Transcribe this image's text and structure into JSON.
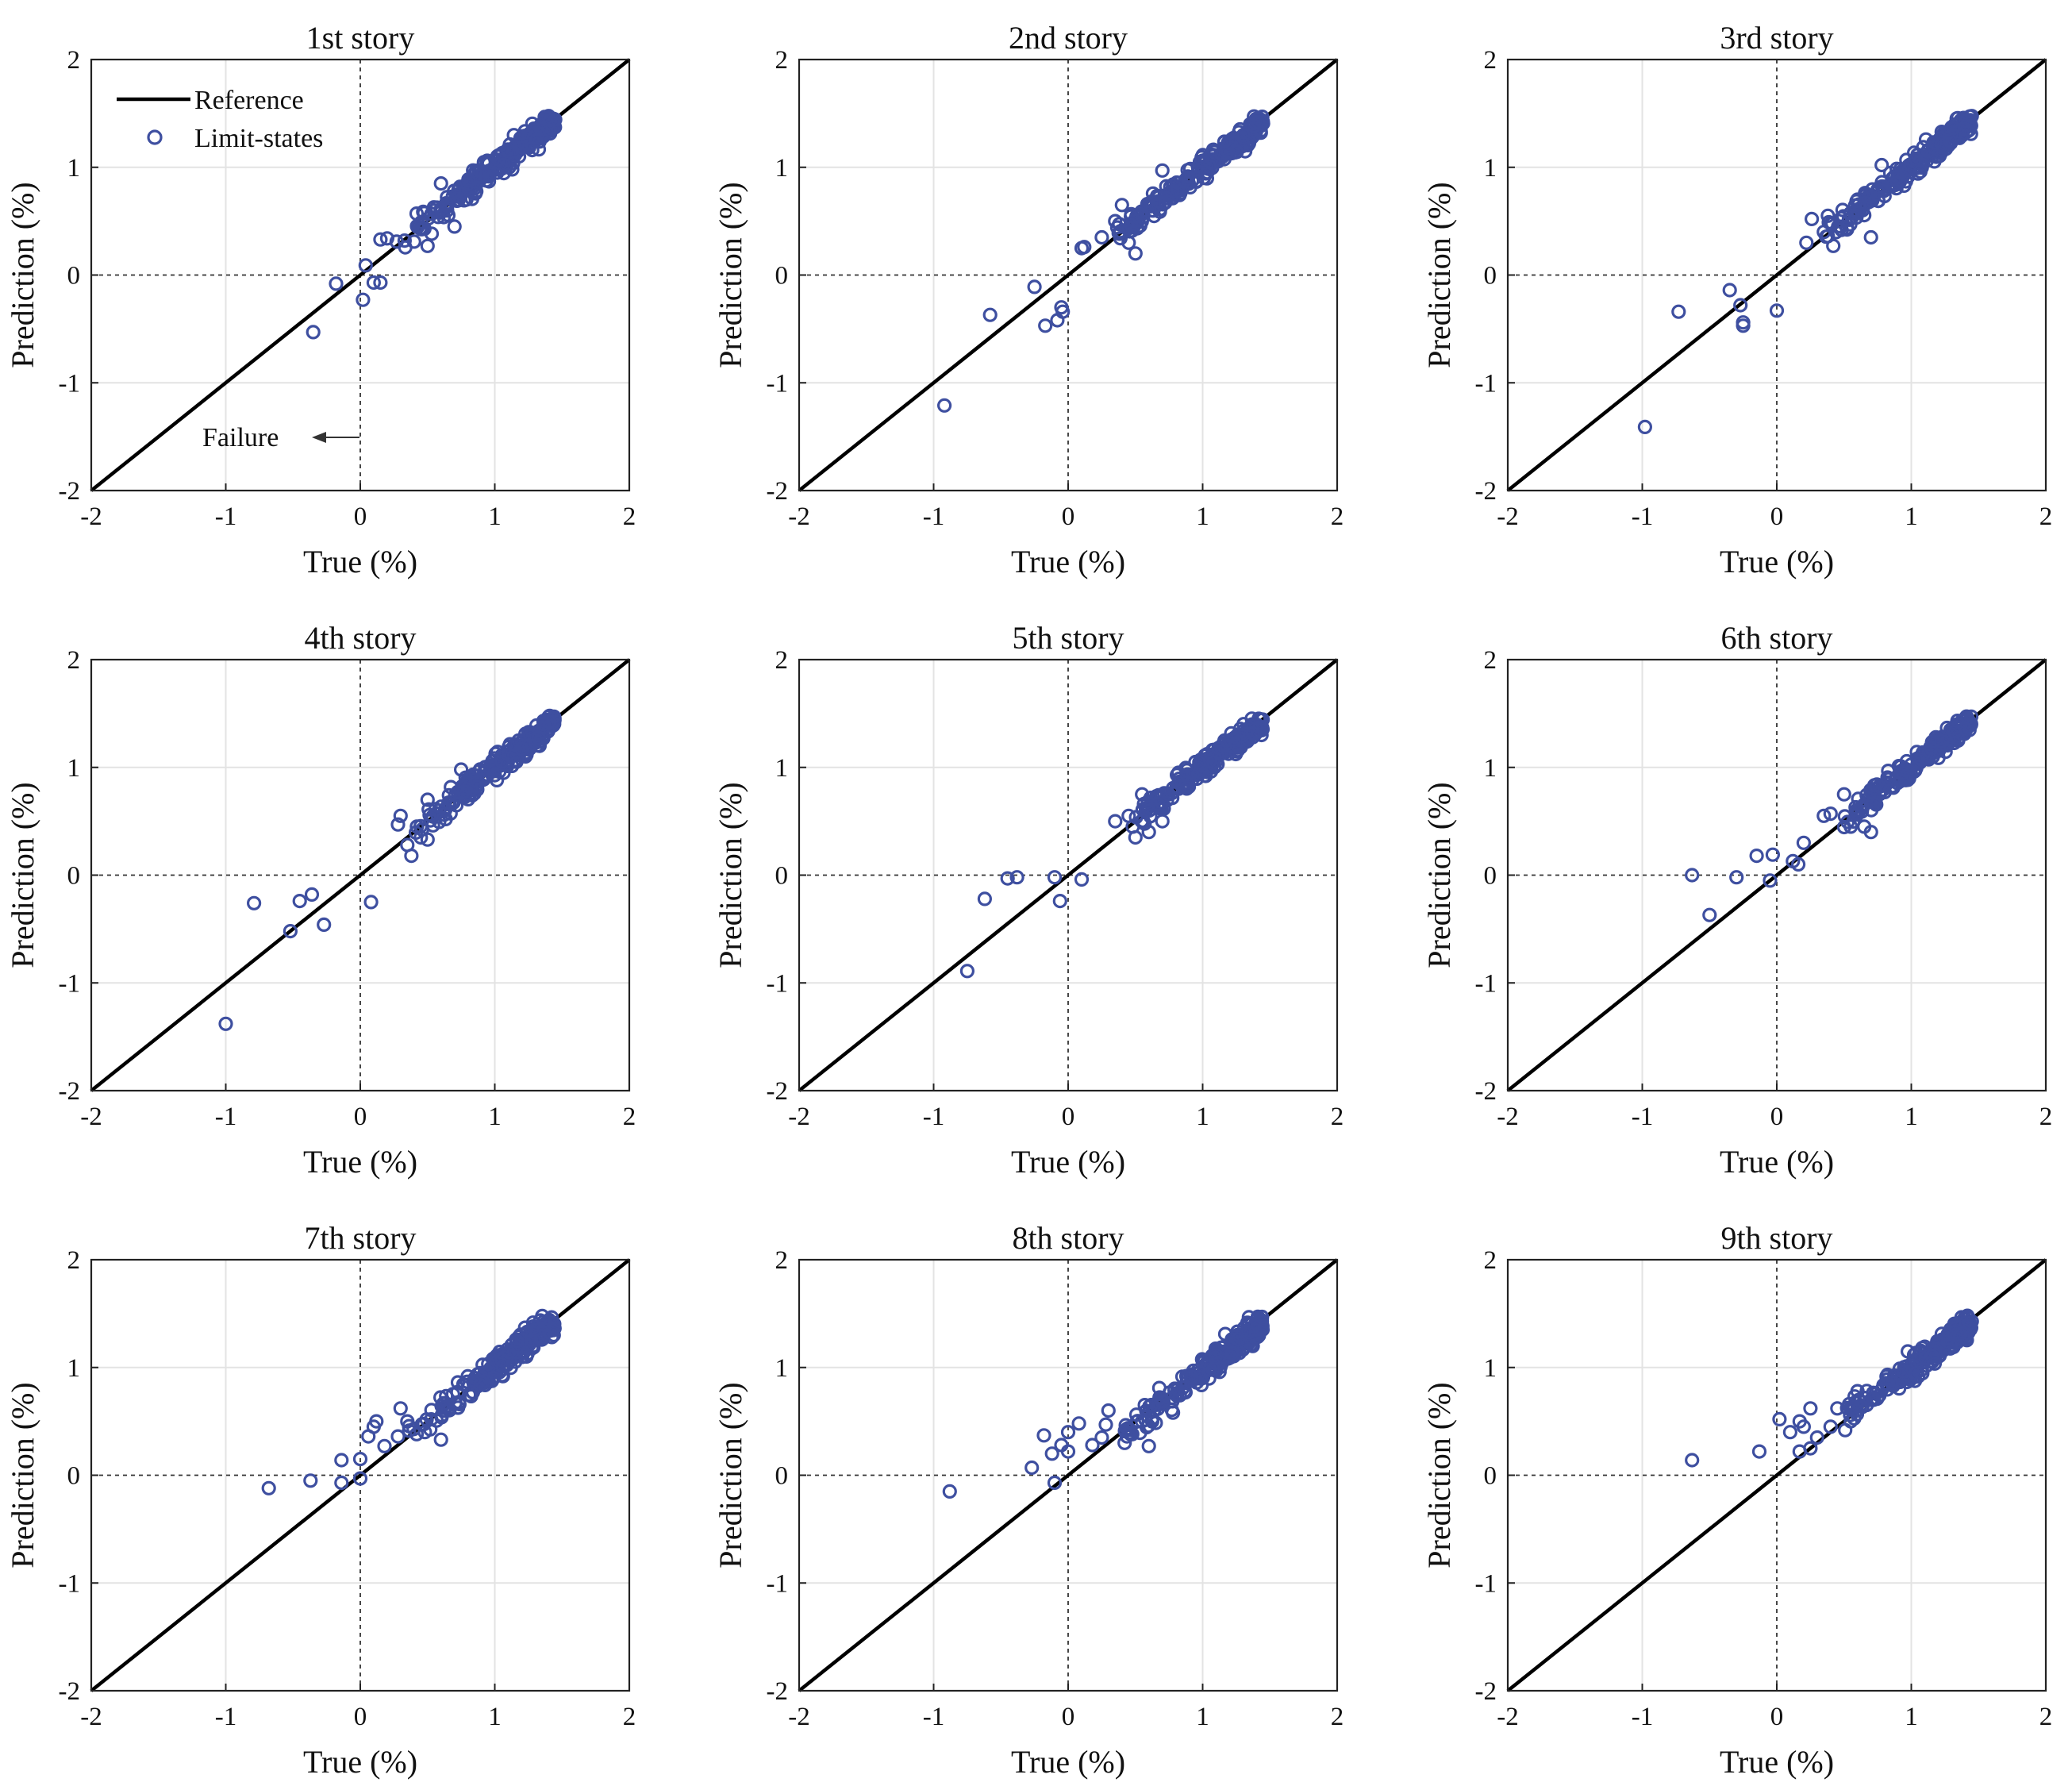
{
  "figure": {
    "legend": {
      "reference_label": "Reference",
      "points_label": "Limit-states"
    },
    "annotation": {
      "text": "Failure"
    },
    "colors": {
      "points": "#3e4fa0",
      "reference": "#000000"
    }
  },
  "chart_data": [
    {
      "type": "scatter",
      "title": "1st story",
      "xlabel": "True (%)",
      "ylabel": "Prediction (%)",
      "xlim": [
        -2,
        2
      ],
      "ylim": [
        -2,
        2
      ],
      "xticks": [
        "-2",
        "-1",
        "0",
        "1",
        "2"
      ],
      "yticks": [
        "-2",
        "-1",
        "0",
        "1",
        "2"
      ],
      "grid": true,
      "reference_line": [
        [
          -2,
          -2
        ],
        [
          2,
          2
        ]
      ],
      "outliers": [
        [
          -0.35,
          -0.53
        ],
        [
          -0.18,
          -0.08
        ],
        [
          0.02,
          -0.23
        ],
        [
          0.04,
          0.09
        ],
        [
          0.1,
          -0.07
        ],
        [
          0.15,
          -0.07
        ],
        [
          0.15,
          0.33
        ],
        [
          0.2,
          0.34
        ],
        [
          0.27,
          0.31
        ],
        [
          0.33,
          0.32
        ],
        [
          0.4,
          0.31
        ],
        [
          0.5,
          0.27
        ],
        [
          0.55,
          0.6
        ],
        [
          0.6,
          0.85
        ],
        [
          0.7,
          0.45
        ]
      ],
      "cluster": {
        "x_range": [
          0.3,
          1.45
        ],
        "slope": 0.97,
        "intercept": 0.03,
        "spread": 0.12,
        "count": 210,
        "seed": 11
      }
    },
    {
      "type": "scatter",
      "title": "2nd story",
      "xlabel": "True (%)",
      "ylabel": "Prediction (%)",
      "xlim": [
        -2,
        2
      ],
      "ylim": [
        -2,
        2
      ],
      "xticks": [
        "-2",
        "-1",
        "0",
        "1",
        "2"
      ],
      "yticks": [
        "-2",
        "-1",
        "0",
        "1",
        "2"
      ],
      "grid": true,
      "reference_line": [
        [
          -2,
          -2
        ],
        [
          2,
          2
        ]
      ],
      "outliers": [
        [
          -0.92,
          -1.21
        ],
        [
          -0.58,
          -0.37
        ],
        [
          -0.25,
          -0.11
        ],
        [
          -0.17,
          -0.47
        ],
        [
          -0.08,
          -0.42
        ],
        [
          -0.05,
          -0.3
        ],
        [
          -0.04,
          -0.34
        ],
        [
          0.1,
          0.25
        ],
        [
          0.12,
          0.26
        ],
        [
          0.25,
          0.35
        ],
        [
          0.35,
          0.5
        ],
        [
          0.4,
          0.65
        ],
        [
          0.45,
          0.3
        ],
        [
          0.5,
          0.2
        ],
        [
          0.7,
          0.97
        ]
      ],
      "cluster": {
        "x_range": [
          0.3,
          1.45
        ],
        "slope": 0.97,
        "intercept": 0.02,
        "spread": 0.11,
        "count": 215,
        "seed": 23
      }
    },
    {
      "type": "scatter",
      "title": "3rd story",
      "xlabel": "True (%)",
      "ylabel": "Prediction (%)",
      "xlim": [
        -2,
        2
      ],
      "ylim": [
        -2,
        2
      ],
      "xticks": [
        "-2",
        "-1",
        "0",
        "1",
        "2"
      ],
      "yticks": [
        "-2",
        "-1",
        "0",
        "1",
        "2"
      ],
      "grid": true,
      "reference_line": [
        [
          -2,
          -2
        ],
        [
          2,
          2
        ]
      ],
      "outliers": [
        [
          -0.98,
          -1.41
        ],
        [
          -0.73,
          -0.34
        ],
        [
          -0.35,
          -0.14
        ],
        [
          -0.27,
          -0.28
        ],
        [
          -0.25,
          -0.44
        ],
        [
          -0.25,
          -0.47
        ],
        [
          0.0,
          -0.33
        ],
        [
          0.22,
          0.3
        ],
        [
          0.26,
          0.52
        ],
        [
          0.35,
          0.4
        ],
        [
          0.38,
          0.55
        ],
        [
          0.42,
          0.27
        ],
        [
          0.6,
          0.7
        ],
        [
          0.7,
          0.35
        ],
        [
          0.78,
          1.02
        ]
      ],
      "cluster": {
        "x_range": [
          0.3,
          1.45
        ],
        "slope": 0.97,
        "intercept": 0.03,
        "spread": 0.11,
        "count": 210,
        "seed": 37
      }
    },
    {
      "type": "scatter",
      "title": "4th story",
      "xlabel": "True (%)",
      "ylabel": "Prediction (%)",
      "xlim": [
        -2,
        2
      ],
      "ylim": [
        -2,
        2
      ],
      "xticks": [
        "-2",
        "-1",
        "0",
        "1",
        "2"
      ],
      "yticks": [
        "-2",
        "-1",
        "0",
        "1",
        "2"
      ],
      "grid": true,
      "reference_line": [
        [
          -2,
          -2
        ],
        [
          2,
          2
        ]
      ],
      "outliers": [
        [
          -1.0,
          -1.38
        ],
        [
          -0.79,
          -0.26
        ],
        [
          -0.52,
          -0.52
        ],
        [
          -0.45,
          -0.24
        ],
        [
          -0.36,
          -0.18
        ],
        [
          -0.27,
          -0.46
        ],
        [
          0.08,
          -0.25
        ],
        [
          0.28,
          0.47
        ],
        [
          0.3,
          0.55
        ],
        [
          0.35,
          0.28
        ],
        [
          0.38,
          0.18
        ],
        [
          0.45,
          0.35
        ],
        [
          0.5,
          0.33
        ],
        [
          0.5,
          0.7
        ],
        [
          0.75,
          0.98
        ]
      ],
      "cluster": {
        "x_range": [
          0.3,
          1.45
        ],
        "slope": 0.97,
        "intercept": 0.03,
        "spread": 0.11,
        "count": 215,
        "seed": 41
      }
    },
    {
      "type": "scatter",
      "title": "5th story",
      "xlabel": "True (%)",
      "ylabel": "Prediction (%)",
      "xlim": [
        -2,
        2
      ],
      "ylim": [
        -2,
        2
      ],
      "xticks": [
        "-2",
        "-1",
        "0",
        "1",
        "2"
      ],
      "yticks": [
        "-2",
        "-1",
        "0",
        "1",
        "2"
      ],
      "grid": true,
      "reference_line": [
        [
          -2,
          -2
        ],
        [
          2,
          2
        ]
      ],
      "outliers": [
        [
          -0.75,
          -0.89
        ],
        [
          -0.62,
          -0.22
        ],
        [
          -0.45,
          -0.03
        ],
        [
          -0.38,
          -0.02
        ],
        [
          -0.1,
          -0.02
        ],
        [
          -0.06,
          -0.24
        ],
        [
          0.1,
          -0.04
        ],
        [
          0.35,
          0.5
        ],
        [
          0.45,
          0.55
        ],
        [
          0.48,
          0.45
        ],
        [
          0.5,
          0.35
        ],
        [
          0.55,
          0.75
        ],
        [
          0.6,
          0.4
        ],
        [
          0.7,
          0.5
        ],
        [
          0.82,
          0.95
        ]
      ],
      "cluster": {
        "x_range": [
          0.45,
          1.45
        ],
        "slope": 0.97,
        "intercept": 0.03,
        "spread": 0.11,
        "count": 200,
        "seed": 53
      }
    },
    {
      "type": "scatter",
      "title": "6th story",
      "xlabel": "True (%)",
      "ylabel": "Prediction (%)",
      "xlim": [
        -2,
        2
      ],
      "ylim": [
        -2,
        2
      ],
      "xticks": [
        "-2",
        "-1",
        "0",
        "1",
        "2"
      ],
      "yticks": [
        "-2",
        "-1",
        "0",
        "1",
        "2"
      ],
      "grid": true,
      "reference_line": [
        [
          -2,
          -2
        ],
        [
          2,
          2
        ]
      ],
      "outliers": [
        [
          -0.63,
          0.0
        ],
        [
          -0.5,
          -0.37
        ],
        [
          -0.3,
          -0.02
        ],
        [
          -0.15,
          0.18
        ],
        [
          -0.05,
          -0.05
        ],
        [
          -0.03,
          0.19
        ],
        [
          0.12,
          0.13
        ],
        [
          0.16,
          0.1
        ],
        [
          0.2,
          0.3
        ],
        [
          0.35,
          0.55
        ],
        [
          0.4,
          0.57
        ],
        [
          0.5,
          0.75
        ],
        [
          0.55,
          0.45
        ],
        [
          0.65,
          0.45
        ],
        [
          0.7,
          0.4
        ]
      ],
      "cluster": {
        "x_range": [
          0.5,
          1.45
        ],
        "slope": 0.97,
        "intercept": 0.03,
        "spread": 0.1,
        "count": 200,
        "seed": 67
      }
    },
    {
      "type": "scatter",
      "title": "7th story",
      "xlabel": "True (%)",
      "ylabel": "Prediction (%)",
      "xlim": [
        -2,
        2
      ],
      "ylim": [
        -2,
        2
      ],
      "xticks": [
        "-2",
        "-1",
        "0",
        "1",
        "2"
      ],
      "yticks": [
        "-2",
        "-1",
        "0",
        "1",
        "2"
      ],
      "grid": true,
      "reference_line": [
        [
          -2,
          -2
        ],
        [
          2,
          2
        ]
      ],
      "outliers": [
        [
          -0.68,
          -0.12
        ],
        [
          -0.37,
          -0.05
        ],
        [
          -0.14,
          -0.07
        ],
        [
          -0.14,
          0.14
        ],
        [
          0.0,
          -0.03
        ],
        [
          0.0,
          0.15
        ],
        [
          0.06,
          0.36
        ],
        [
          0.1,
          0.45
        ],
        [
          0.12,
          0.5
        ],
        [
          0.18,
          0.27
        ],
        [
          0.28,
          0.36
        ],
        [
          0.3,
          0.62
        ],
        [
          0.35,
          0.5
        ],
        [
          0.48,
          0.4
        ],
        [
          0.6,
          0.33
        ]
      ],
      "cluster": {
        "x_range": [
          0.35,
          1.45
        ],
        "slope": 0.95,
        "intercept": 0.05,
        "spread": 0.12,
        "count": 210,
        "seed": 71
      }
    },
    {
      "type": "scatter",
      "title": "8th story",
      "xlabel": "True (%)",
      "ylabel": "Prediction (%)",
      "xlim": [
        -2,
        2
      ],
      "ylim": [
        -2,
        2
      ],
      "xticks": [
        "-2",
        "-1",
        "0",
        "1",
        "2"
      ],
      "yticks": [
        "-2",
        "-1",
        "0",
        "1",
        "2"
      ],
      "grid": true,
      "reference_line": [
        [
          -2,
          -2
        ],
        [
          2,
          2
        ]
      ],
      "outliers": [
        [
          -0.88,
          -0.15
        ],
        [
          -0.27,
          0.07
        ],
        [
          -0.18,
          0.37
        ],
        [
          -0.12,
          0.2
        ],
        [
          -0.1,
          -0.07
        ],
        [
          -0.05,
          0.28
        ],
        [
          0.0,
          0.22
        ],
        [
          0.0,
          0.4
        ],
        [
          0.08,
          0.48
        ],
        [
          0.18,
          0.28
        ],
        [
          0.25,
          0.35
        ],
        [
          0.28,
          0.47
        ],
        [
          0.3,
          0.6
        ],
        [
          0.42,
          0.3
        ],
        [
          0.55,
          0.5
        ],
        [
          0.6,
          0.27
        ]
      ],
      "cluster": {
        "x_range": [
          0.35,
          1.45
        ],
        "slope": 0.97,
        "intercept": 0.0,
        "spread": 0.13,
        "count": 215,
        "seed": 83
      }
    },
    {
      "type": "scatter",
      "title": "9th story",
      "xlabel": "True (%)",
      "ylabel": "Prediction (%)",
      "xlim": [
        -2,
        2
      ],
      "ylim": [
        -2,
        2
      ],
      "xticks": [
        "-2",
        "-1",
        "0",
        "1",
        "2"
      ],
      "yticks": [
        "-2",
        "-1",
        "0",
        "1",
        "2"
      ],
      "grid": true,
      "reference_line": [
        [
          -2,
          -2
        ],
        [
          2,
          2
        ]
      ],
      "outliers": [
        [
          -0.63,
          0.14
        ],
        [
          -0.13,
          0.22
        ],
        [
          0.02,
          0.52
        ],
        [
          0.1,
          0.4
        ],
        [
          0.17,
          0.22
        ],
        [
          0.17,
          0.5
        ],
        [
          0.2,
          0.45
        ],
        [
          0.25,
          0.62
        ],
        [
          0.25,
          0.25
        ],
        [
          0.3,
          0.35
        ],
        [
          0.4,
          0.45
        ],
        [
          0.45,
          0.62
        ],
        [
          0.55,
          0.5
        ],
        [
          0.6,
          0.78
        ],
        [
          0.7,
          0.7
        ]
      ],
      "cluster": {
        "x_range": [
          0.45,
          1.45
        ],
        "slope": 0.92,
        "intercept": 0.08,
        "spread": 0.12,
        "count": 205,
        "seed": 97
      }
    }
  ]
}
